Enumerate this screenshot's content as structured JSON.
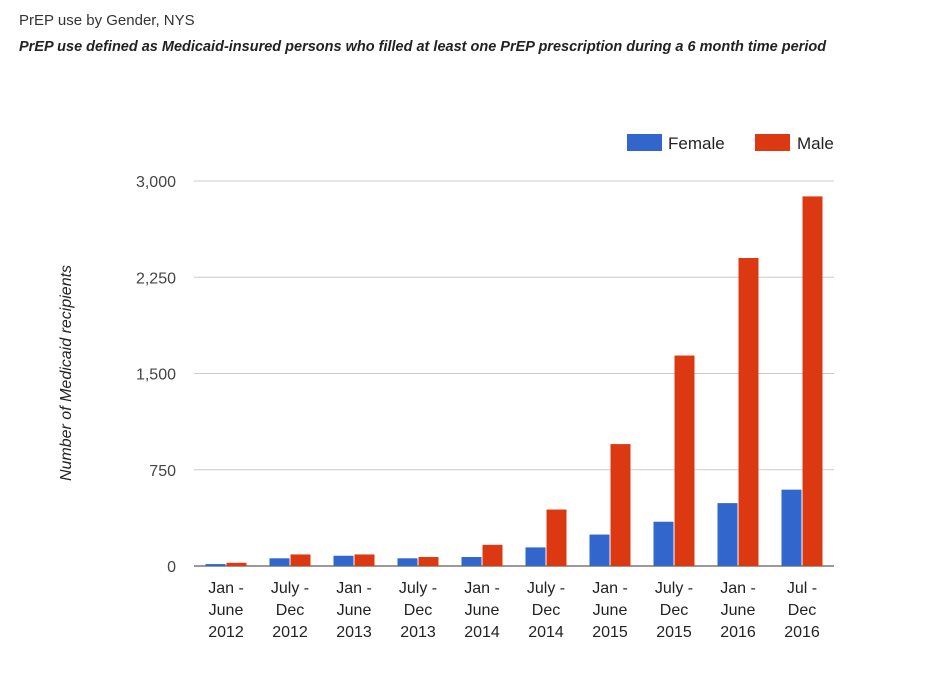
{
  "chart_data": {
    "type": "bar",
    "title": "PrEP use by Gender, NYS",
    "subtitle": "PrEP use defined as Medicaid-insured persons who filled at least one PrEP prescription during a 6 month time period",
    "ylabel": "Number of Medicaid recipients",
    "xlabel": "",
    "ylim": [
      0,
      3000
    ],
    "yticks": [
      0,
      750,
      1500,
      2250,
      3000
    ],
    "ytick_labels": [
      "0",
      "750",
      "1,500",
      "2,250",
      "3,000"
    ],
    "grid": true,
    "legend_position": "top-right",
    "categories": [
      [
        "Jan -",
        "June",
        "2012"
      ],
      [
        "July -",
        "Dec",
        "2012"
      ],
      [
        "Jan -",
        "June",
        "2013"
      ],
      [
        "July -",
        "Dec",
        "2013"
      ],
      [
        "Jan -",
        "June",
        "2014"
      ],
      [
        "July -",
        "Dec",
        "2014"
      ],
      [
        "Jan -",
        "June",
        "2015"
      ],
      [
        "July -",
        "Dec",
        "2015"
      ],
      [
        "Jan -",
        "June",
        "2016"
      ],
      [
        "Jul -",
        "Dec",
        "2016"
      ]
    ],
    "series": [
      {
        "name": "Female",
        "color": "#3366cc",
        "values": [
          15,
          60,
          80,
          60,
          70,
          145,
          245,
          345,
          490,
          595
        ]
      },
      {
        "name": "Male",
        "color": "#dc3912",
        "values": [
          25,
          90,
          90,
          70,
          165,
          440,
          950,
          1640,
          2400,
          2880
        ]
      }
    ]
  }
}
